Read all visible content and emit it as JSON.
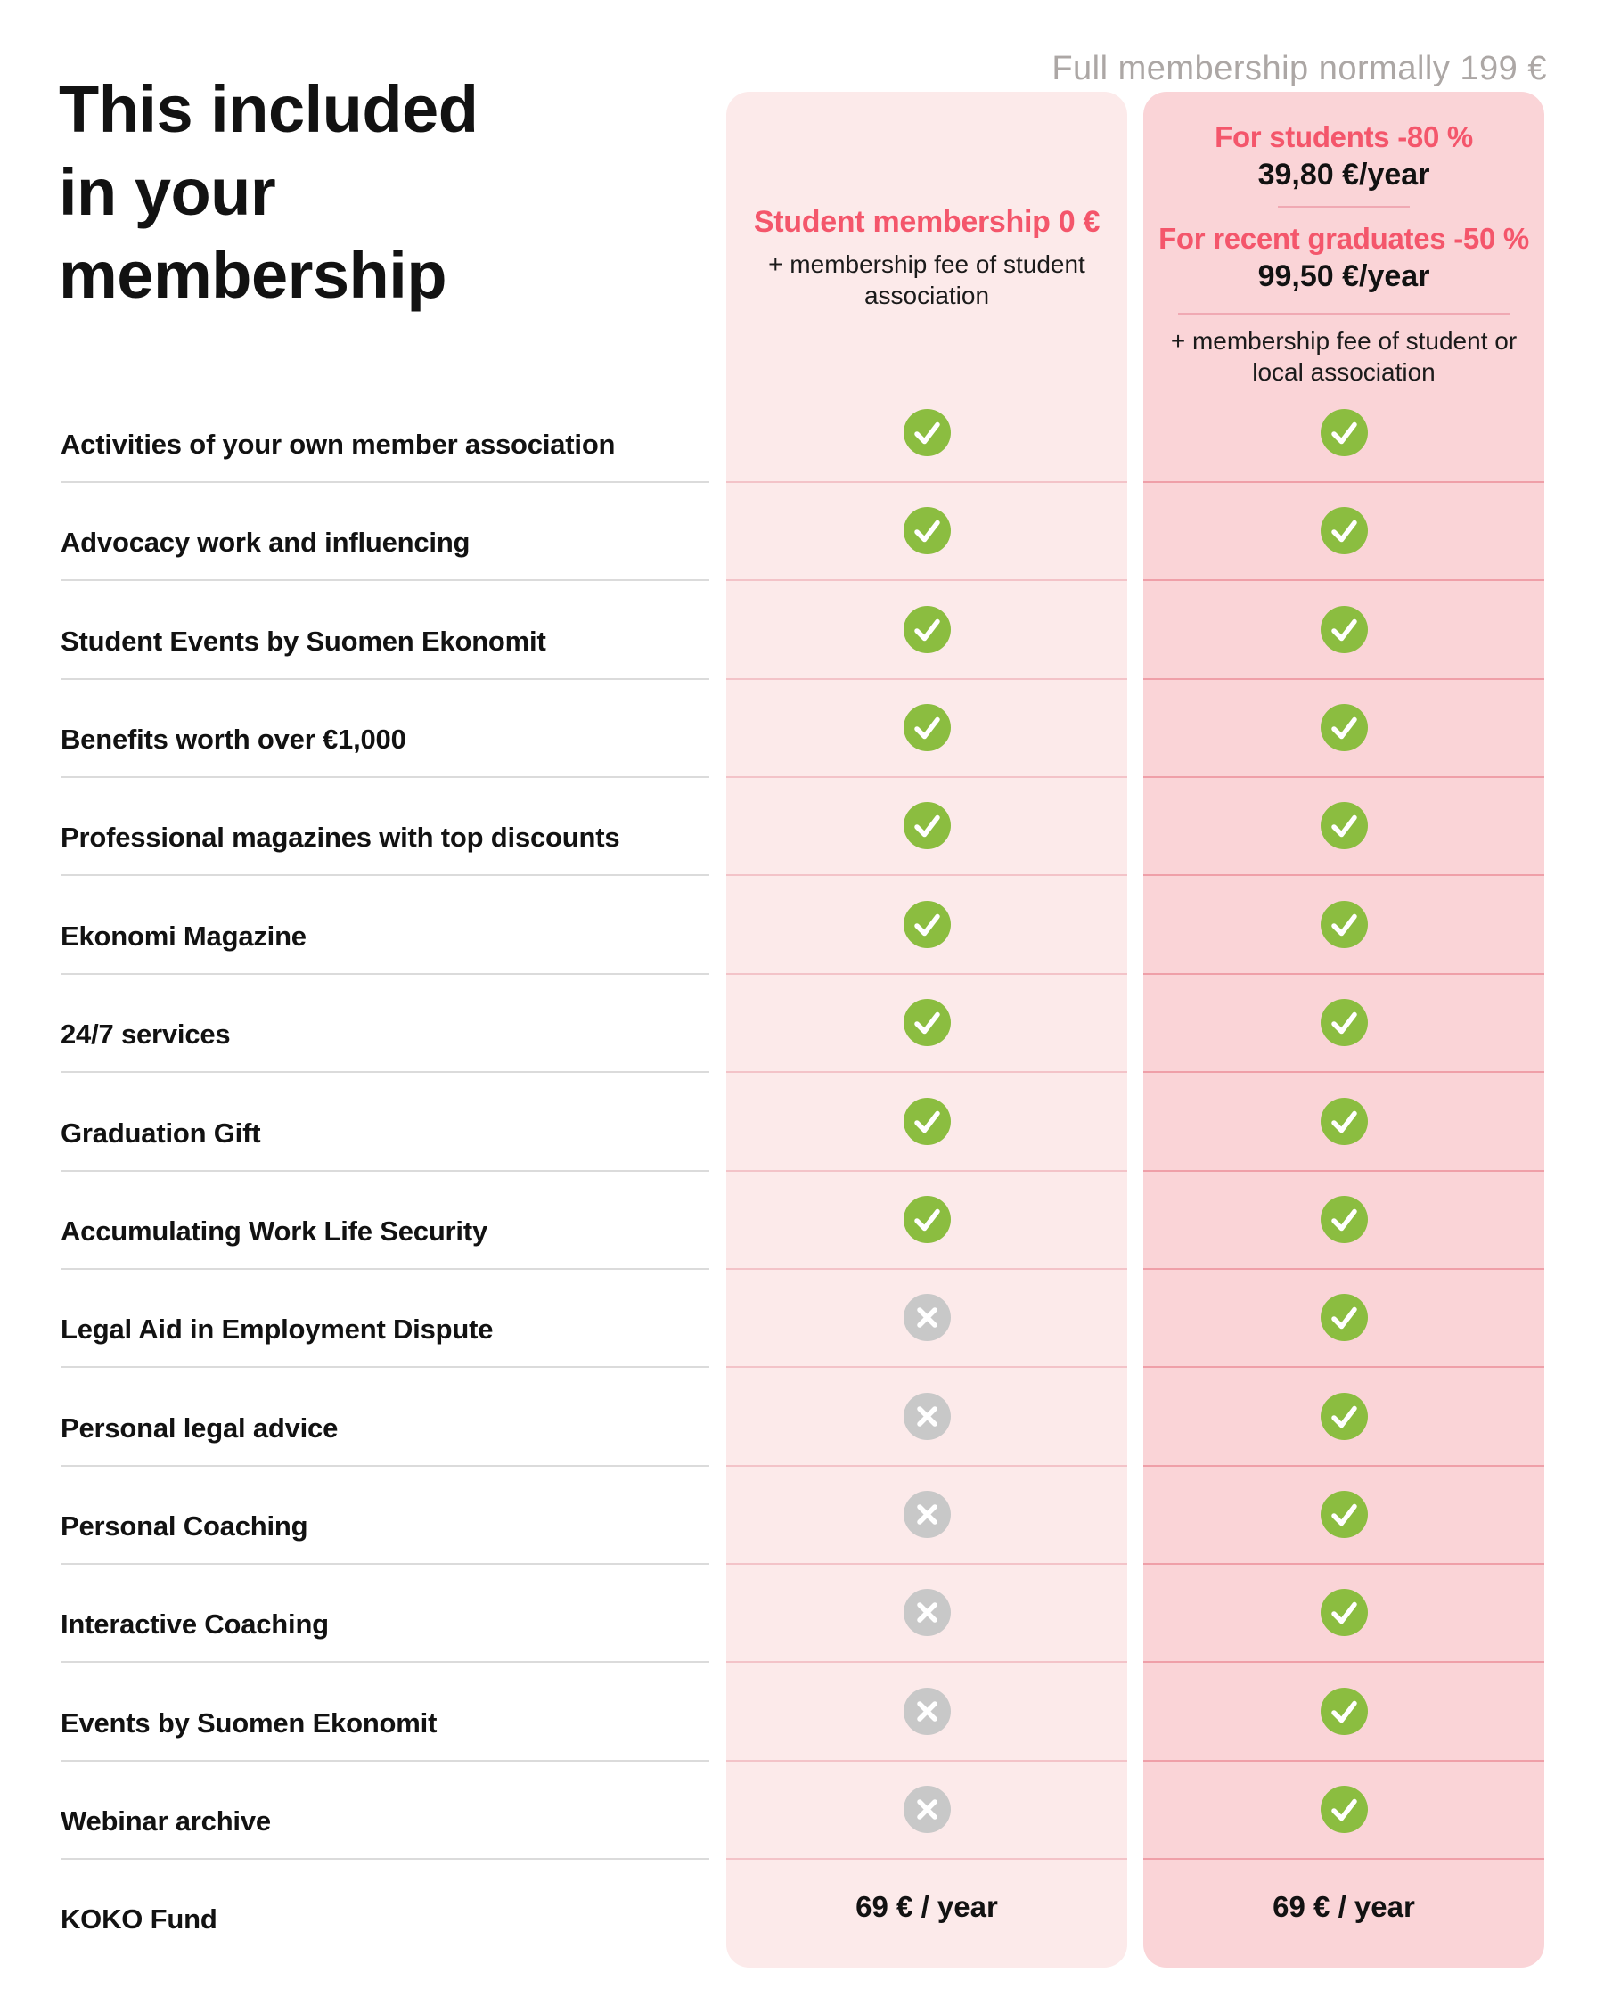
{
  "header": {
    "full_membership_note": "Full membership normally 199 €",
    "title": "This included\nin your\nmembership"
  },
  "columns": {
    "student": {
      "title": "Student membership 0 €",
      "subtitle": "+ membership fee of student association"
    },
    "full": {
      "students_discount": "For students -80 %",
      "students_price": "39,80 €/year",
      "graduates_discount": "For recent graduates -50 %",
      "graduates_price": "99,50 €/year",
      "subtitle": "+ membership fee of student or local association"
    }
  },
  "rows": [
    {
      "label": "Activities of your own member association",
      "student": "check",
      "full": "check"
    },
    {
      "label": "Advocacy work and influencing",
      "student": "check",
      "full": "check"
    },
    {
      "label": "Student Events by Suomen Ekonomit",
      "student": "check",
      "full": "check"
    },
    {
      "label": "Benefits worth over €1,000",
      "student": "check",
      "full": "check"
    },
    {
      "label": "Professional magazines with top discounts",
      "student": "check",
      "full": "check"
    },
    {
      "label": "Ekonomi Magazine",
      "student": "check",
      "full": "check"
    },
    {
      "label": "24/7 services",
      "student": "check",
      "full": "check"
    },
    {
      "label": "Graduation Gift",
      "student": "check",
      "full": "check"
    },
    {
      "label": "Accumulating Work Life Security",
      "student": "check",
      "full": "check"
    },
    {
      "label": "Legal Aid in Employment Dispute",
      "student": "cross",
      "full": "check"
    },
    {
      "label": "Personal legal advice",
      "student": "cross",
      "full": "check"
    },
    {
      "label": "Personal Coaching",
      "student": "cross",
      "full": "check"
    },
    {
      "label": "Interactive Coaching",
      "student": "cross",
      "full": "check"
    },
    {
      "label": "Events by Suomen Ekonomit",
      "student": "cross",
      "full": "check"
    },
    {
      "label": "Webinar archive",
      "student": "cross",
      "full": "check"
    },
    {
      "label": "KOKO Fund",
      "student": "69 € / year",
      "full": "69 € / year"
    }
  ],
  "icons": {
    "included": "check-icon",
    "not_included": "cross-icon"
  },
  "colors": {
    "accent_pink": "#F4566B",
    "check_green": "#8BBD40",
    "cross_gray": "#C8C8C8",
    "student_column_bg": "#FCEAEA",
    "full_column_bg": "#FAD4D7",
    "note_gray": "#ACA7A5",
    "text_black": "#121212"
  }
}
